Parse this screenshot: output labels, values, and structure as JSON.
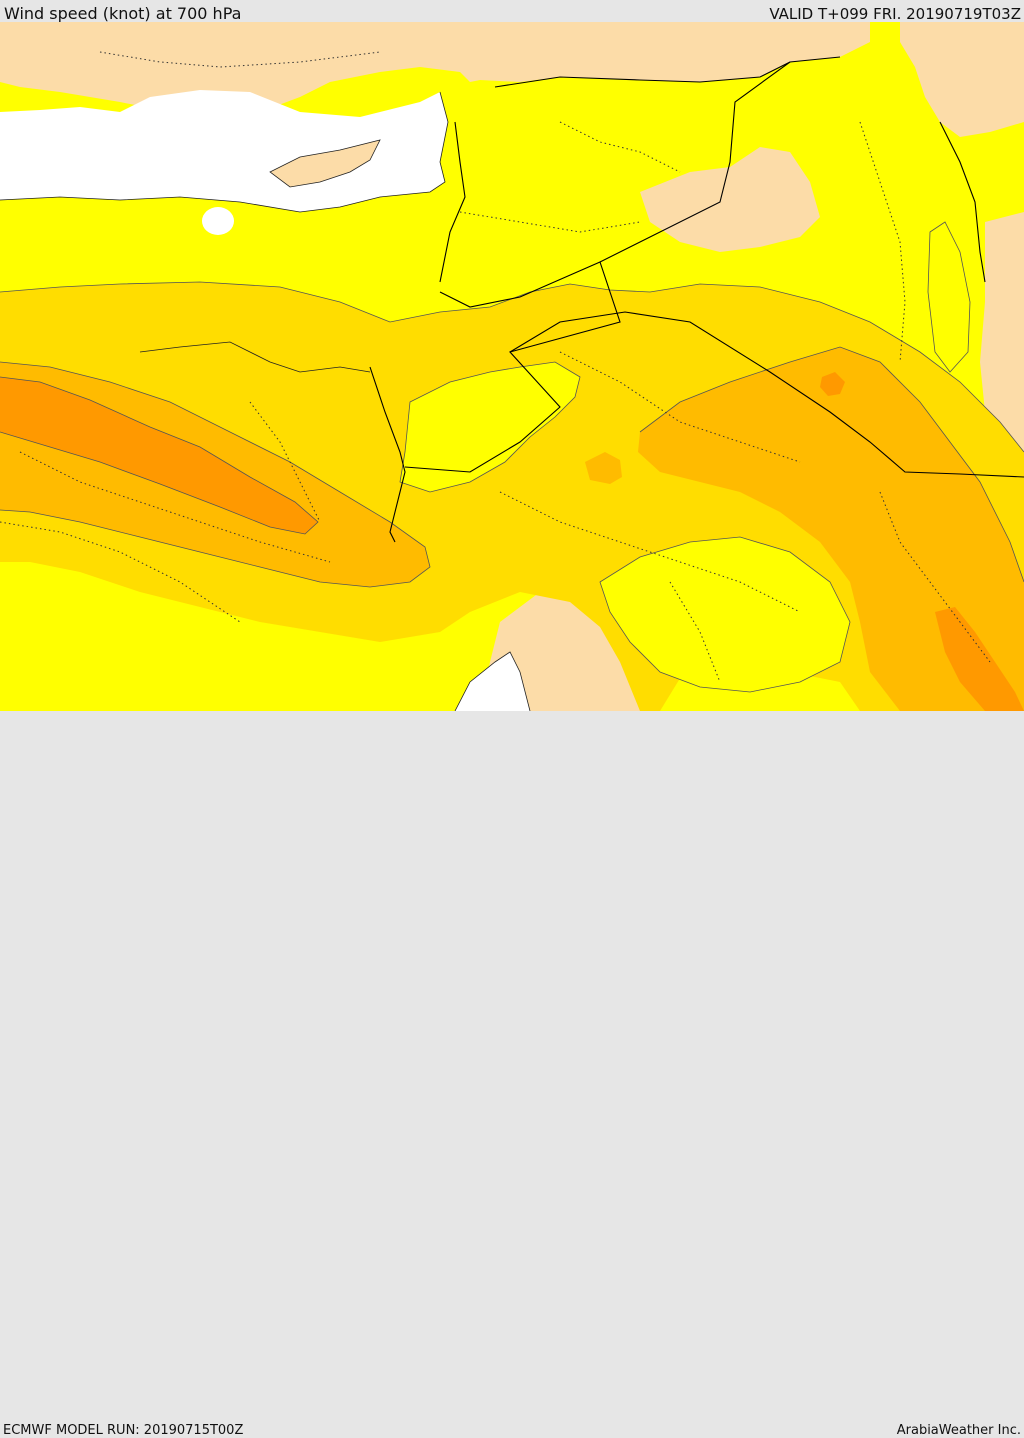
{
  "header": {
    "title": "Wind speed (knot) at 700 hPa",
    "valid": "VALID T+099 FRI. 20190719T03Z"
  },
  "footer": {
    "model_run": "ECMWF MODEL RUN: 20190715T00Z",
    "credit": "ArabiaWeather Inc."
  },
  "map": {
    "colors": {
      "sea": "#ffffff",
      "land_calm": "#fcdca8",
      "band_1": "#ffff00",
      "band_2": "#ffdd00",
      "band_3": "#ffbb00",
      "band_4": "#ff9900",
      "borders": "#000000"
    }
  }
}
